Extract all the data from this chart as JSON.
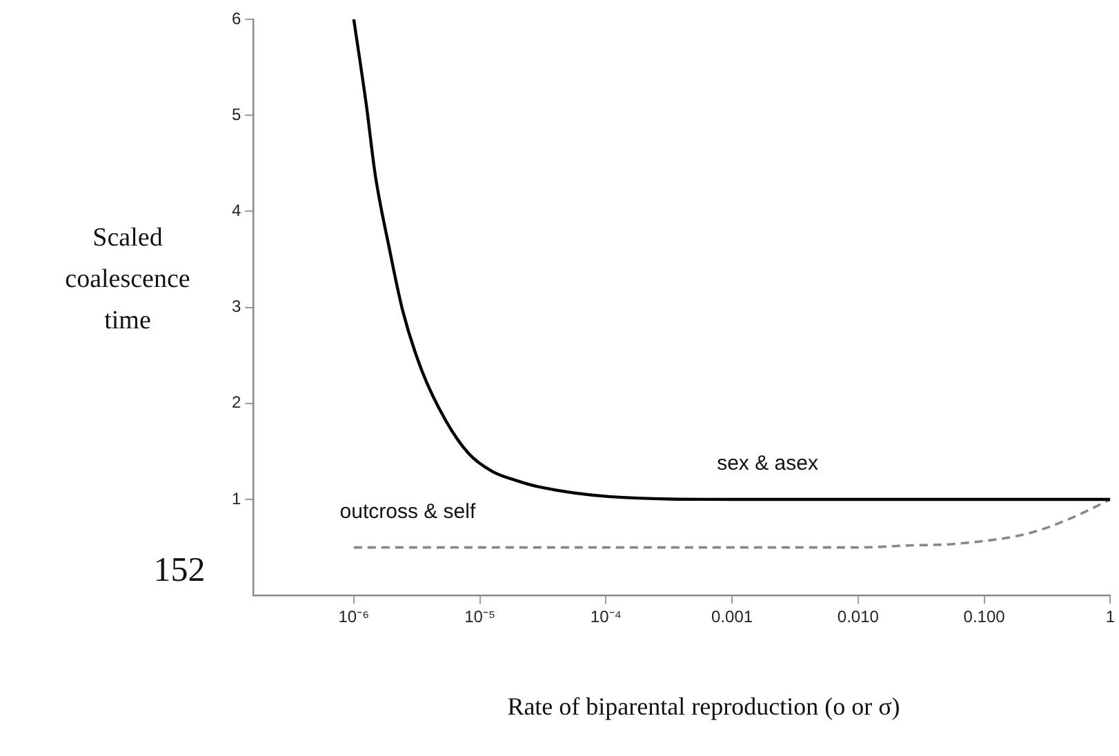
{
  "chart_data": {
    "type": "line",
    "xlabel": "Rate of biparental reproduction (o or σ)",
    "ylabel": "Scaled coalescence time",
    "annotations": [
      "152"
    ],
    "log": "x",
    "grid": false,
    "legend": false,
    "marker": "none",
    "xlim": [
      1.6e-07,
      1
    ],
    "xticks": [
      {
        "value": 1e-06,
        "label": "10⁻⁶"
      },
      {
        "value": 1e-05,
        "label": "10⁻⁵"
      },
      {
        "value": 0.0001,
        "label": "10⁻⁴"
      },
      {
        "value": 0.001,
        "label": "0.001"
      },
      {
        "value": 0.01,
        "label": "0.010"
      },
      {
        "value": 0.1,
        "label": "0.100"
      },
      1
    ],
    "ylim": [
      0,
      6
    ],
    "yticks": [
      1,
      2,
      3,
      4,
      5,
      6
    ],
    "series": [
      {
        "name": "sex & asex",
        "color": "#000000",
        "line_style": "solid",
        "x": [
          1e-06,
          1.26e-06,
          1.48e-06,
          1.91e-06,
          2.45e-06,
          3.47e-06,
          5.37e-06,
          8.13e-06,
          1.26e-05,
          1.91e-05,
          2.95e-05,
          0.000105,
          0.001,
          0.01,
          0.1,
          1
        ],
        "values": [
          6.0,
          5.1,
          4.38,
          3.62,
          2.96,
          2.34,
          1.82,
          1.48,
          1.29,
          1.2,
          1.13,
          1.03,
          1.0,
          1.0,
          1.0,
          1.0
        ]
      },
      {
        "name": "outcross & self",
        "color": "#888888",
        "line_style": "dashed",
        "x": [
          1e-06,
          0.0001,
          0.001,
          0.01,
          0.025,
          0.063,
          0.23,
          0.52,
          1
        ],
        "values": [
          0.5,
          0.5,
          0.5,
          0.5,
          0.52,
          0.54,
          0.65,
          0.82,
          1.0
        ]
      }
    ]
  }
}
